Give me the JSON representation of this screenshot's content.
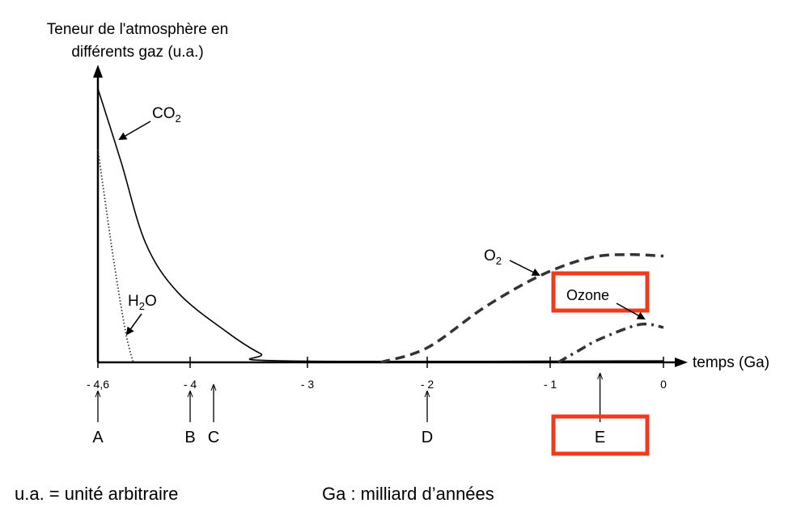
{
  "chart_data": {
    "type": "line",
    "title": "",
    "ylabel_lines": [
      "Teneur de l'atmosphère en",
      "différents gaz (u.a.)"
    ],
    "xlabel": "temps (Ga)",
    "xticks": [
      {
        "value": -4.6,
        "label": "- 4,6"
      },
      {
        "value": -4,
        "label": "- 4"
      },
      {
        "value": -3,
        "label": "- 3"
      },
      {
        "value": -2,
        "label": "- 2"
      },
      {
        "value": -1,
        "label": "- 1"
      },
      {
        "value": 0,
        "label": "0"
      }
    ],
    "xlim": [
      -4.6,
      0
    ],
    "ylim": [
      0,
      100
    ],
    "grid": false,
    "series": [
      {
        "name": "CO2",
        "label": "CO",
        "sub": "2",
        "style": "solid",
        "x": [
          -4.6,
          -4.45,
          -4.29,
          -4.08,
          -3.69,
          -3.4,
          -3.2,
          0
        ],
        "y": [
          94,
          69,
          41,
          24,
          10.5,
          3,
          0.5,
          0.5
        ]
      },
      {
        "name": "H2O",
        "label_pre": "H",
        "sub": "2",
        "label_post": "O",
        "style": "dotted",
        "x": [
          -4.6,
          -4.5,
          -4.42,
          -4.37
        ],
        "y": [
          73,
          36,
          10.5,
          0
        ]
      },
      {
        "name": "O2",
        "label": "O",
        "sub": "2",
        "style": "dashed",
        "x": [
          -2.39,
          -2.0,
          -1.53,
          -1.07,
          -0.64,
          -0.3,
          0
        ],
        "y": [
          0,
          5,
          19,
          30,
          36,
          37,
          36.5
        ]
      },
      {
        "name": "Ozone",
        "label": "Ozone",
        "style": "dashdot",
        "x": [
          -0.93,
          -0.75,
          -0.56,
          -0.21,
          0
        ],
        "y": [
          0,
          4,
          8,
          13,
          12
        ]
      }
    ],
    "markers": [
      {
        "label": "A",
        "value": -4.6
      },
      {
        "label": "B",
        "value": -4
      },
      {
        "label": "C",
        "value": -3.8
      },
      {
        "label": "D",
        "value": -2
      },
      {
        "label": "E",
        "value": -0.56
      }
    ],
    "highlight_color": "#f03a1e"
  },
  "footnotes": {
    "ua": "u.a. = unité arbitraire",
    "ga": "Ga : milliard d’années"
  }
}
